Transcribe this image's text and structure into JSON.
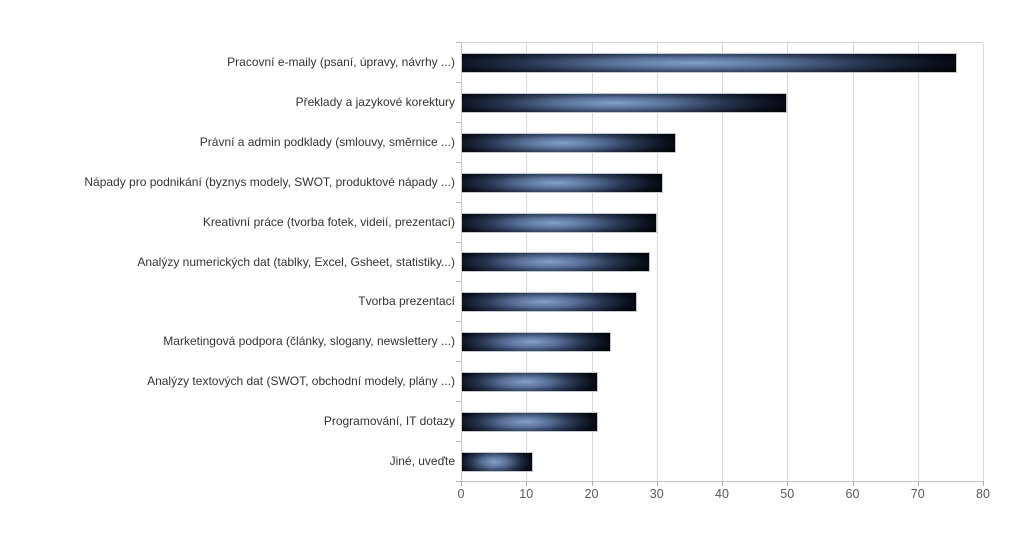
{
  "chart_data": {
    "type": "bar",
    "orientation": "horizontal",
    "title": "",
    "categories": [
      "Pracovní e-maily (psaní, úpravy, návrhy ...)",
      "Překlady a jazykové korektury",
      "Právní a admin podklady (smlouvy, směrnice ...)",
      "Nápady pro podnikání (byznys modely, SWOT, produktové nápady ...)",
      "Kreativní práce (tvorba fotek, videií, prezentací)",
      "Analýzy numerických dat (tablky, Excel, Gsheet, statistiky...)",
      "Tvorba prezentací",
      "Marketingová podpora (články, slogany, newslettery ...)",
      "Analýzy textových dat (SWOT, obchodní modely, plány ...)",
      "Programování, IT dotazy",
      "Jiné, uveďte"
    ],
    "values": [
      76,
      50,
      33,
      31,
      30,
      29,
      27,
      23,
      21,
      21,
      11
    ],
    "xlabel": "",
    "ylabel": "",
    "xlim": [
      0,
      80
    ],
    "xticks": [
      0,
      10,
      20,
      30,
      40,
      50,
      60,
      70,
      80
    ],
    "grid": true,
    "legend_position": "none",
    "colors": {
      "bar_highlight": "#84a1c8",
      "bar_mid": "#26344d",
      "bar_dark": "#030509",
      "bar_border": "#c3c7ce",
      "gridline": "#d9d9d9",
      "axis_line": "#c2c2c2",
      "tick_label": "#595959",
      "category_label": "#333333",
      "background": "#ffffff"
    }
  }
}
